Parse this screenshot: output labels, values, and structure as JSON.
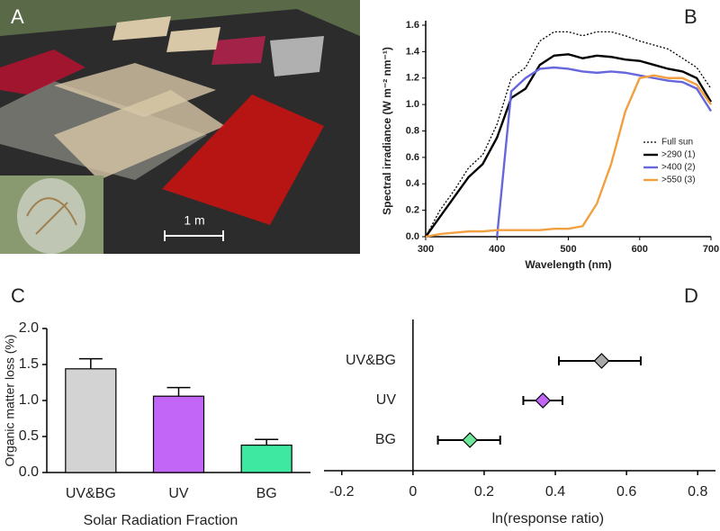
{
  "panel_labels": [
    "A",
    "B",
    "C",
    "D"
  ],
  "photo": {
    "scale_label": "1 m"
  },
  "chart_data": [
    {
      "type": "line",
      "xlabel": "Wavelength (nm)",
      "ylabel": "Spectral irradiance (W m⁻² nm⁻¹)",
      "x": [
        300,
        320,
        340,
        360,
        380,
        400,
        420,
        440,
        460,
        480,
        500,
        520,
        540,
        560,
        580,
        600,
        620,
        640,
        660,
        680,
        700
      ],
      "xlim": [
        300,
        700
      ],
      "xticks": [
        300,
        400,
        500,
        600,
        700
      ],
      "ylim": [
        0,
        1.6
      ],
      "yticks": [
        {
          "value": 0,
          "label": "0.0"
        },
        {
          "value": 0.2,
          "label": "0.2"
        },
        {
          "value": 0.4,
          "label": "0.4"
        },
        {
          "value": 0.6,
          "label": "0.6"
        },
        {
          "value": 0.8,
          "label": "0.8"
        },
        {
          "value": 1,
          "label": "1.0"
        },
        {
          "value": 1.2,
          "label": "1.2"
        },
        {
          "value": 1.4,
          "label": "1.4"
        },
        {
          "value": 1.6,
          "label": "1.6"
        }
      ],
      "legend": "right",
      "series": [
        {
          "name": "Full sun",
          "color": "#000000",
          "line_style": "dotted",
          "values": [
            0.0,
            0.2,
            0.35,
            0.52,
            0.62,
            0.85,
            1.2,
            1.28,
            1.48,
            1.55,
            1.55,
            1.52,
            1.55,
            1.55,
            1.52,
            1.48,
            1.45,
            1.42,
            1.35,
            1.28,
            1.12
          ]
        },
        {
          "name": ">290 (1)",
          "color": "#000000",
          "line_style": "solid",
          "values": [
            0.0,
            0.15,
            0.3,
            0.45,
            0.55,
            0.75,
            1.05,
            1.12,
            1.3,
            1.37,
            1.38,
            1.35,
            1.37,
            1.36,
            1.34,
            1.33,
            1.3,
            1.27,
            1.25,
            1.2,
            1.02
          ]
        },
        {
          "name": ">400 (2)",
          "color": "#6666dd",
          "line_style": "solid",
          "values": [
            null,
            null,
            null,
            null,
            null,
            0.0,
            1.1,
            1.2,
            1.27,
            1.28,
            1.27,
            1.25,
            1.24,
            1.25,
            1.24,
            1.22,
            1.2,
            1.18,
            1.17,
            1.12,
            0.95
          ]
        },
        {
          "name": ">550 (3)",
          "color": "#f0a040",
          "line_style": "solid",
          "values": [
            0.0,
            0.02,
            0.03,
            0.04,
            0.04,
            0.05,
            0.05,
            0.05,
            0.05,
            0.06,
            0.06,
            0.08,
            0.25,
            0.55,
            0.95,
            1.2,
            1.22,
            1.2,
            1.2,
            1.15,
            1.0
          ]
        }
      ]
    },
    {
      "type": "bar",
      "xlabel": "Solar Radiation Fraction",
      "ylabel": "Organic matter loss (%)",
      "categories": [
        "UV&BG",
        "UV",
        "BG"
      ],
      "values": [
        1.44,
        1.06,
        0.38
      ],
      "errors": [
        0.14,
        0.12,
        0.08
      ],
      "colors": [
        "#d3d3d3",
        "#c266f7",
        "#3ee8a0"
      ],
      "ylim": [
        0,
        2
      ],
      "yticks": [
        {
          "value": 0,
          "label": "0.0"
        },
        {
          "value": 0.5,
          "label": "0.5"
        },
        {
          "value": 1,
          "label": "1.0"
        },
        {
          "value": 1.5,
          "label": "1.5"
        },
        {
          "value": 2,
          "label": "2.0"
        }
      ]
    },
    {
      "type": "forest",
      "xlabel": "ln(response ratio)",
      "categories": [
        "UV&BG",
        "UV",
        "BG"
      ],
      "values": [
        0.53,
        0.365,
        0.16
      ],
      "ci_low": [
        0.41,
        0.31,
        0.07
      ],
      "ci_high": [
        0.64,
        0.42,
        0.245
      ],
      "colors": [
        "#a9a9a9",
        "#c266f7",
        "#6ee89a"
      ],
      "xlim": [
        -0.25,
        0.85
      ],
      "xticks": [
        -0.2,
        0,
        0.2,
        0.4,
        0.6,
        0.8
      ]
    }
  ]
}
